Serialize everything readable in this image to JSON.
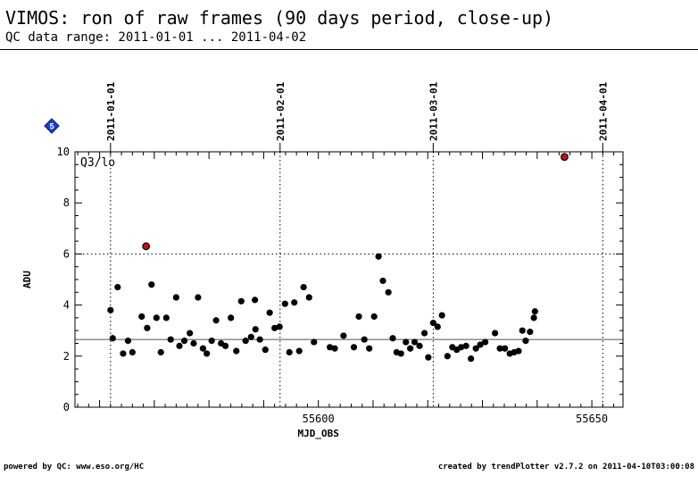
{
  "header": {
    "title": "VIMOS: ron of raw frames (90 days period, close-up)",
    "subtitle": "QC data range: 2011-01-01 ... 2011-04-02"
  },
  "badge": {
    "icon": "blue-diamond-marker-icon",
    "label": "5",
    "color": "#1a3fd0"
  },
  "footer": {
    "left": "powered by QC: www.eso.org/HC",
    "right": "created by trendPlotter v2.7.2 on 2011-04-10T03:00:08"
  },
  "colors": {
    "point": "#000000",
    "outlier": "#c41010",
    "median_line": "#666666",
    "grid": "#000000"
  },
  "chart_data": {
    "type": "scatter",
    "panel_label": "Q3/lo",
    "xlabel": "MJD_OBS",
    "ylabel": "ADU",
    "xlim": [
      55555.5,
      55655.7
    ],
    "ylim": [
      0,
      10
    ],
    "x_ticks": [
      55600,
      55650
    ],
    "y_ticks": [
      0,
      2,
      4,
      6,
      8,
      10
    ],
    "date_markers": [
      {
        "label": "2011-01-01",
        "mjd": 55562
      },
      {
        "label": "2011-02-01",
        "mjd": 55593
      },
      {
        "label": "2011-03-01",
        "mjd": 55621
      },
      {
        "label": "2011-04-01",
        "mjd": 55652
      }
    ],
    "upper_threshold": 6.0,
    "median": 2.65,
    "series": [
      {
        "points": [
          [
            55562.0,
            3.8
          ],
          [
            55562.4,
            2.7
          ],
          [
            55563.3,
            4.7
          ],
          [
            55564.3,
            2.1
          ],
          [
            55565.2,
            2.6
          ],
          [
            55566.0,
            2.15
          ],
          [
            55567.7,
            3.55
          ],
          [
            55568.7,
            3.1
          ],
          [
            55569.5,
            4.8
          ],
          [
            55570.4,
            3.5
          ],
          [
            55571.2,
            2.15
          ],
          [
            55572.2,
            3.5
          ],
          [
            55573.0,
            2.65
          ],
          [
            55574.0,
            4.3
          ],
          [
            55574.6,
            2.4
          ],
          [
            55575.5,
            2.6
          ],
          [
            55576.5,
            2.9
          ],
          [
            55577.2,
            2.5
          ],
          [
            55578.0,
            4.3
          ],
          [
            55578.9,
            2.3
          ],
          [
            55579.6,
            2.1
          ],
          [
            55580.5,
            2.6
          ],
          [
            55581.3,
            3.4
          ],
          [
            55582.2,
            2.5
          ],
          [
            55583.0,
            2.4
          ],
          [
            55584.0,
            3.5
          ],
          [
            55585.0,
            2.2
          ],
          [
            55585.9,
            4.15
          ],
          [
            55586.7,
            2.6
          ],
          [
            55587.7,
            2.75
          ],
          [
            55588.4,
            4.2
          ],
          [
            55588.5,
            3.05
          ],
          [
            55589.3,
            2.65
          ],
          [
            55590.3,
            2.25
          ],
          [
            55591.1,
            3.7
          ],
          [
            55592.0,
            3.1
          ],
          [
            55592.9,
            3.15
          ],
          [
            55593.9,
            4.05
          ],
          [
            55594.7,
            2.15
          ],
          [
            55595.6,
            4.1
          ],
          [
            55596.5,
            2.2
          ],
          [
            55597.3,
            4.7
          ],
          [
            55598.3,
            4.3
          ],
          [
            55599.2,
            2.55
          ],
          [
            55602.1,
            2.35
          ],
          [
            55603.0,
            2.3
          ],
          [
            55604.6,
            2.8
          ],
          [
            55606.5,
            2.35
          ],
          [
            55607.4,
            3.55
          ],
          [
            55608.4,
            2.65
          ],
          [
            55609.3,
            2.3
          ],
          [
            55610.2,
            3.55
          ],
          [
            55611.0,
            5.9
          ],
          [
            55611.8,
            4.95
          ],
          [
            55612.8,
            4.5
          ],
          [
            55613.6,
            2.7
          ],
          [
            55614.3,
            2.15
          ],
          [
            55615.1,
            2.1
          ],
          [
            55616.0,
            2.55
          ],
          [
            55616.8,
            2.3
          ],
          [
            55617.6,
            2.55
          ],
          [
            55618.5,
            2.4
          ],
          [
            55619.4,
            2.9
          ],
          [
            55620.1,
            1.95
          ],
          [
            55621.0,
            3.3
          ],
          [
            55621.8,
            3.15
          ],
          [
            55622.6,
            3.6
          ],
          [
            55623.6,
            2.0
          ],
          [
            55624.5,
            2.35
          ],
          [
            55625.3,
            2.25
          ],
          [
            55626.1,
            2.35
          ],
          [
            55627.0,
            2.4
          ],
          [
            55627.9,
            1.9
          ],
          [
            55628.8,
            2.3
          ],
          [
            55629.6,
            2.45
          ],
          [
            55630.5,
            2.55
          ],
          [
            55632.3,
            2.9
          ],
          [
            55633.2,
            2.3
          ],
          [
            55634.1,
            2.3
          ],
          [
            55635.0,
            2.1
          ],
          [
            55635.8,
            2.15
          ],
          [
            55636.6,
            2.2
          ],
          [
            55637.3,
            3.0
          ],
          [
            55637.9,
            2.6
          ],
          [
            55638.7,
            2.95
          ],
          [
            55639.4,
            3.5
          ],
          [
            55639.6,
            3.75
          ]
        ]
      },
      {
        "name": "outliers",
        "points": [
          [
            55568.5,
            6.3
          ],
          [
            55645.0,
            9.8
          ]
        ]
      }
    ]
  }
}
